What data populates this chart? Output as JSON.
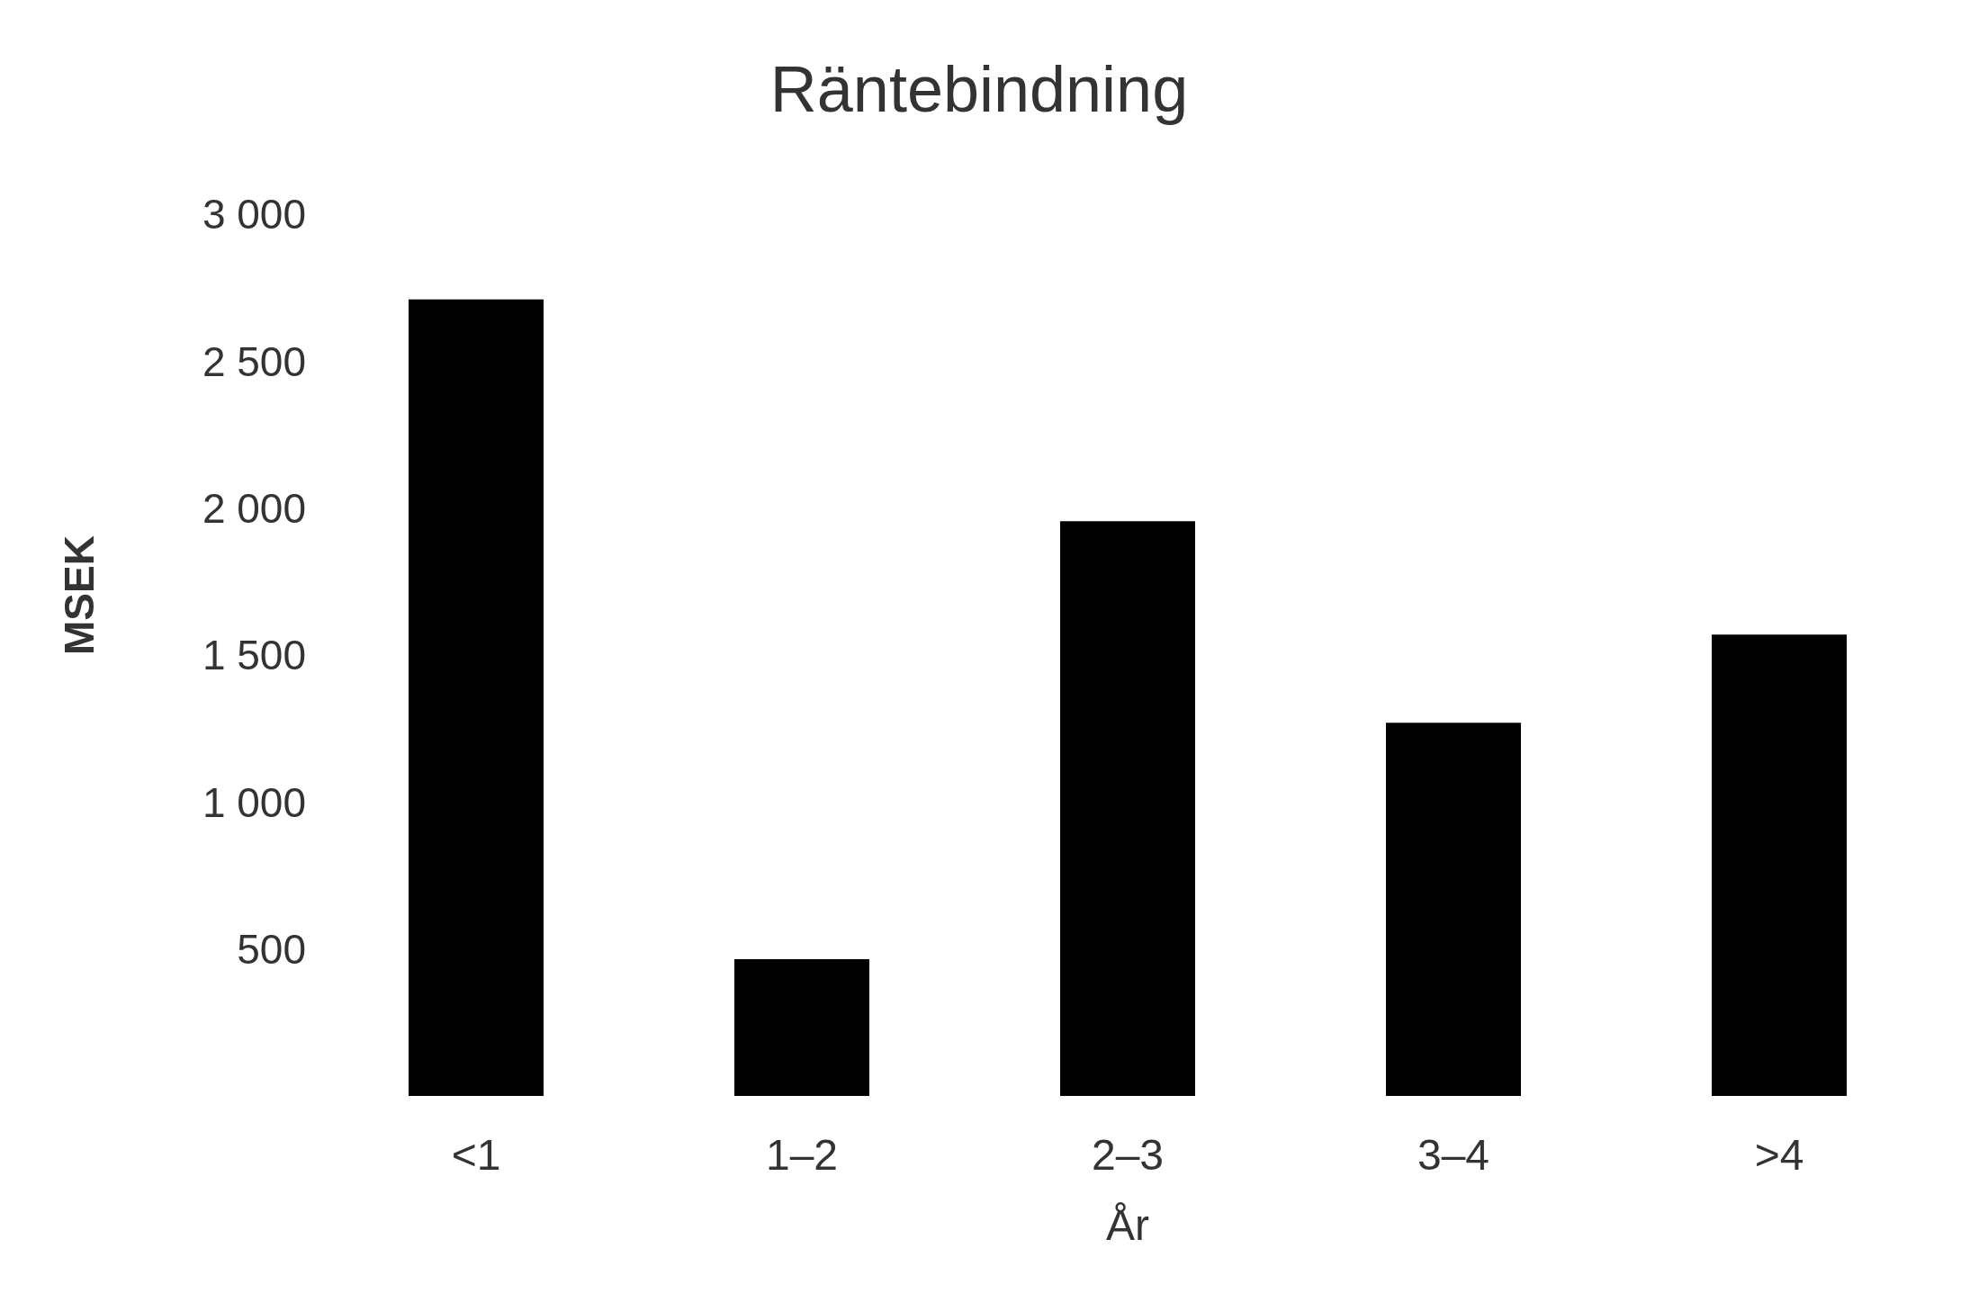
{
  "chart_data": {
    "type": "bar",
    "title": "Räntebindning",
    "xlabel": "År",
    "ylabel": "MSEK",
    "categories": [
      "<1",
      "1–2",
      "2–3",
      "3–4",
      ">4"
    ],
    "values": [
      2710,
      465,
      1955,
      1270,
      1570
    ],
    "color": "#000000",
    "ylim": [
      0,
      3000
    ],
    "yticks": [
      {
        "value": 500,
        "label": "500"
      },
      {
        "value": 1000,
        "label": "1 000"
      },
      {
        "value": 1500,
        "label": "1 500"
      },
      {
        "value": 2000,
        "label": "2 000"
      },
      {
        "value": 2500,
        "label": "2 500"
      },
      {
        "value": 3000,
        "label": "3 000"
      }
    ],
    "grid": false,
    "legend": false
  }
}
